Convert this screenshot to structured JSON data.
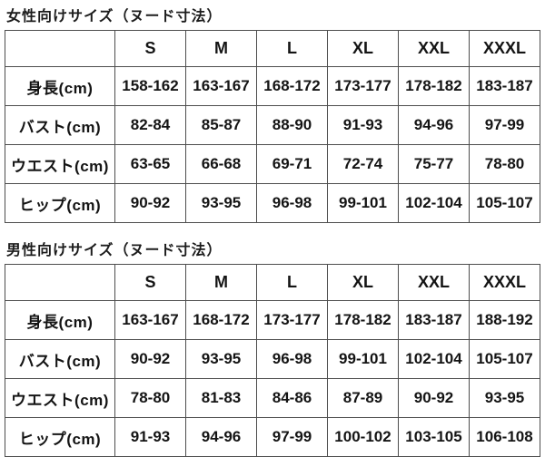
{
  "page": {
    "background_color": "#ffffff",
    "text_color": "#141414",
    "border_color": "#4d4d4d"
  },
  "chart_data": [
    {
      "type": "table",
      "title": "女性向けサイズ（ヌード寸法）",
      "corner_label": "",
      "columns": [
        "S",
        "M",
        "L",
        "XL",
        "XXL",
        "XXXL"
      ],
      "rows": [
        {
          "label": "身長(cm)",
          "values": [
            "158-162",
            "163-167",
            "168-172",
            "173-177",
            "178-182",
            "183-187"
          ]
        },
        {
          "label": "バスト(cm)",
          "values": [
            "82-84",
            "85-87",
            "88-90",
            "91-93",
            "94-96",
            "97-99"
          ]
        },
        {
          "label": "ウエスト(cm)",
          "values": [
            "63-65",
            "66-68",
            "69-71",
            "72-74",
            "75-77",
            "78-80"
          ]
        },
        {
          "label": "ヒップ(cm)",
          "values": [
            "90-92",
            "93-95",
            "96-98",
            "99-101",
            "102-104",
            "105-107"
          ]
        }
      ]
    },
    {
      "type": "table",
      "title": "男性向けサイズ（ヌード寸法）",
      "corner_label": "",
      "columns": [
        "S",
        "M",
        "L",
        "XL",
        "XXL",
        "XXXL"
      ],
      "rows": [
        {
          "label": "身長(cm)",
          "values": [
            "163-167",
            "168-172",
            "173-177",
            "178-182",
            "183-187",
            "188-192"
          ]
        },
        {
          "label": "バスト(cm)",
          "values": [
            "90-92",
            "93-95",
            "96-98",
            "99-101",
            "102-104",
            "105-107"
          ]
        },
        {
          "label": "ウエスト(cm)",
          "values": [
            "78-80",
            "81-83",
            "84-86",
            "87-89",
            "90-92",
            "93-95"
          ]
        },
        {
          "label": "ヒップ(cm)",
          "values": [
            "91-93",
            "94-96",
            "97-99",
            "100-102",
            "103-105",
            "106-108"
          ]
        }
      ]
    }
  ]
}
